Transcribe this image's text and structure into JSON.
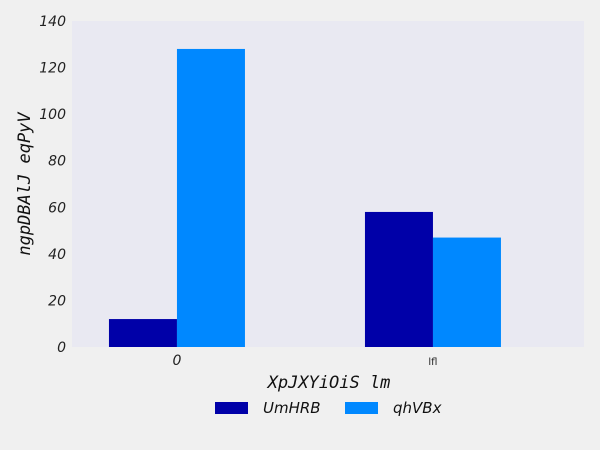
{
  "chart_data": {
    "type": "bar",
    "title": "",
    "xlabel": "XpJXYiOiS lm",
    "ylabel": "ngpDBAlJ eqPyV",
    "categories": [
      "0",
      "lfl"
    ],
    "series": [
      {
        "name": "UmHRB",
        "values": [
          12,
          58
        ],
        "color": "#0000a8"
      },
      {
        "name": "qhVBx",
        "values": [
          128,
          47
        ],
        "color": "#0088ff"
      }
    ],
    "ylim": [
      0,
      140
    ],
    "yticks": [
      0,
      20,
      40,
      60,
      80,
      100,
      120,
      140
    ],
    "grid": false,
    "legend_position": "bottom-center",
    "colors": {
      "plot_background": "#e9e9f2",
      "page_background": "#f0f0f0"
    }
  }
}
